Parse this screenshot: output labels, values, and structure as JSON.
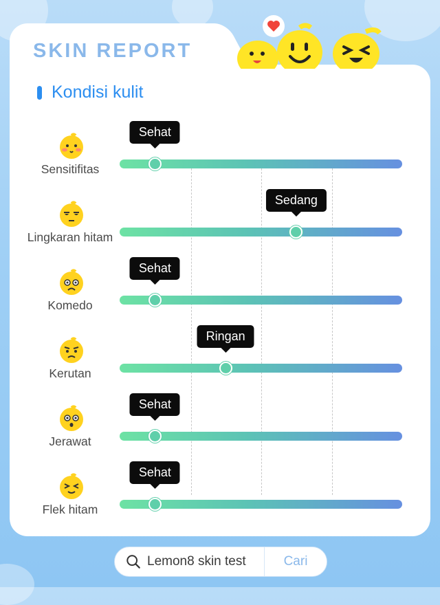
{
  "header": {
    "title": "SKIN REPORT"
  },
  "section": {
    "title": "Kondisi kulit"
  },
  "rows": [
    {
      "label": "Sensitifitas",
      "level": "Sehat",
      "value": 0.125,
      "face_icon": "flushed-face-icon"
    },
    {
      "label": "Lingkaran hitam",
      "level": "Sedang",
      "value": 0.625,
      "face_icon": "tired-face-icon"
    },
    {
      "label": "Komedo",
      "level": "Sehat",
      "value": 0.125,
      "face_icon": "worried-face-icon"
    },
    {
      "label": "Kerutan",
      "level": "Ringan",
      "value": 0.375,
      "face_icon": "frowning-face-icon"
    },
    {
      "label": "Jerawat",
      "level": "Sehat",
      "value": 0.125,
      "face_icon": "surprised-face-icon"
    },
    {
      "label": "Flek hitam",
      "level": "Sehat",
      "value": 0.125,
      "face_icon": "squinting-face-icon"
    }
  ],
  "search": {
    "text": "Lemon8 skin test",
    "button": "Cari"
  },
  "colors": {
    "accent": "#2c8ef0",
    "title": "#8ab8ea",
    "face": "#ffd21f",
    "tooltip": "#0c0c0c"
  }
}
